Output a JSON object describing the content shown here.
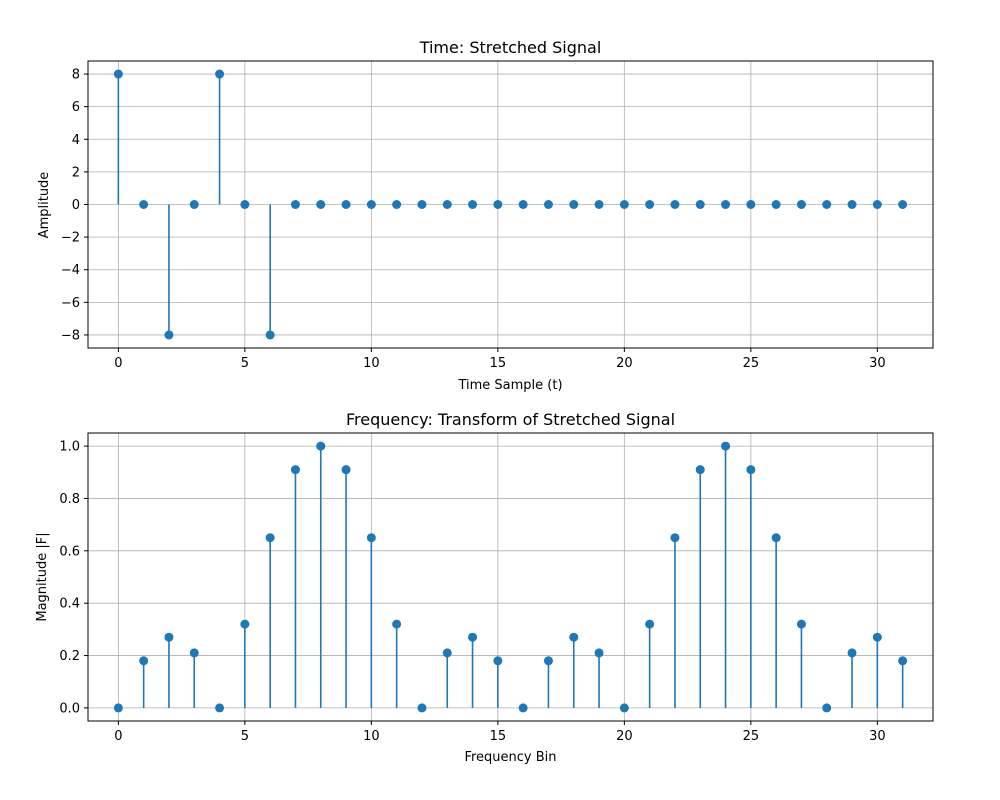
{
  "chart_data": [
    {
      "type": "stem",
      "title": "Time: Stretched Signal",
      "xlabel": "Time Sample (t)",
      "ylabel": "Amplitude",
      "xlim": [
        -1.2,
        32.2
      ],
      "ylim": [
        -8.8,
        8.8
      ],
      "xticks": [
        0,
        5,
        10,
        15,
        20,
        25,
        30
      ],
      "yticks": [
        -8,
        -6,
        -4,
        -2,
        0,
        2,
        4,
        6,
        8
      ],
      "ytick_labels": [
        "−8",
        "−6",
        "−4",
        "−2",
        "0",
        "2",
        "4",
        "6",
        "8"
      ],
      "grid": true,
      "color": "#1f77b4",
      "x": [
        0,
        1,
        2,
        3,
        4,
        5,
        6,
        7,
        8,
        9,
        10,
        11,
        12,
        13,
        14,
        15,
        16,
        17,
        18,
        19,
        20,
        21,
        22,
        23,
        24,
        25,
        26,
        27,
        28,
        29,
        30,
        31
      ],
      "y": [
        8,
        0,
        -8,
        0,
        8,
        0,
        -8,
        0,
        0,
        0,
        0,
        0,
        0,
        0,
        0,
        0,
        0,
        0,
        0,
        0,
        0,
        0,
        0,
        0,
        0,
        0,
        0,
        0,
        0,
        0,
        0,
        0
      ]
    },
    {
      "type": "stem",
      "title": "Frequency: Transform of Stretched Signal",
      "xlabel": "Frequency Bin",
      "ylabel": "Magnitude |F|",
      "xlim": [
        -1.2,
        32.2
      ],
      "ylim": [
        -0.05,
        1.05
      ],
      "xticks": [
        0,
        5,
        10,
        15,
        20,
        25,
        30
      ],
      "yticks": [
        0.0,
        0.2,
        0.4,
        0.6,
        0.8,
        1.0
      ],
      "ytick_labels": [
        "0.0",
        "0.2",
        "0.4",
        "0.6",
        "0.8",
        "1.0"
      ],
      "grid": true,
      "color": "#1f77b4",
      "x": [
        0,
        1,
        2,
        3,
        4,
        5,
        6,
        7,
        8,
        9,
        10,
        11,
        12,
        13,
        14,
        15,
        16,
        17,
        18,
        19,
        20,
        21,
        22,
        23,
        24,
        25,
        26,
        27,
        28,
        29,
        30,
        31
      ],
      "y": [
        0.0,
        0.18,
        0.27,
        0.21,
        0.0,
        0.32,
        0.65,
        0.91,
        1.0,
        0.91,
        0.65,
        0.32,
        0.0,
        0.21,
        0.27,
        0.18,
        0.0,
        0.18,
        0.27,
        0.21,
        0.0,
        0.32,
        0.65,
        0.91,
        1.0,
        0.91,
        0.65,
        0.32,
        0.0,
        0.21,
        0.27,
        0.18
      ]
    }
  ]
}
